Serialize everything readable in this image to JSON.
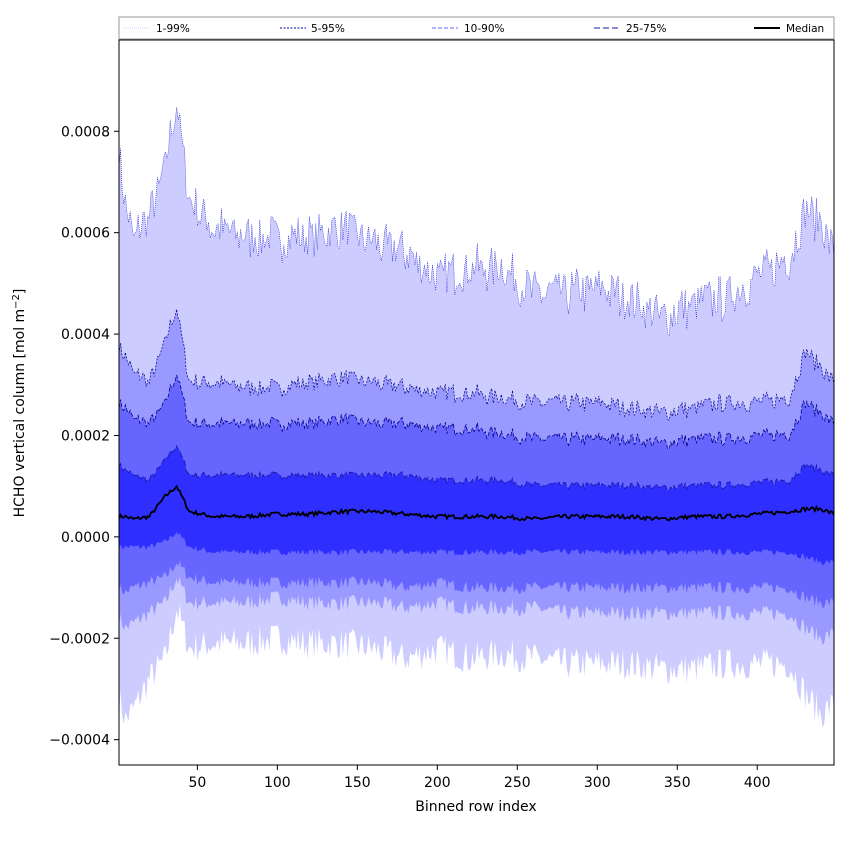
{
  "chart_data": {
    "type": "area",
    "title": "",
    "xlabel": "Binned row index",
    "ylabel_main": "HCHO vertical column [mol m",
    "ylabel_sup": "−2",
    "ylabel_close": "]",
    "xlim": [
      1,
      448
    ],
    "ylim": [
      -0.00045,
      0.00098
    ],
    "xticks": [
      50,
      100,
      150,
      200,
      250,
      300,
      350,
      400
    ],
    "xtick_labels": [
      "50",
      "100",
      "150",
      "200",
      "250",
      "300",
      "350",
      "400"
    ],
    "yticks": [
      -0.0004,
      -0.0002,
      0.0,
      0.0002,
      0.0004,
      0.0006,
      0.0008
    ],
    "ytick_labels": [
      "−0.0004",
      "−0.0002",
      "0.0000",
      "0.0002",
      "0.0004",
      "0.0006",
      "0.0008"
    ],
    "grid": false,
    "legend_position": "top, above plot",
    "legend": [
      {
        "label": "1-99%",
        "color": "#ccccff",
        "dash": "1,1"
      },
      {
        "label": "5-95%",
        "color": "#0000aa",
        "dash": "2,1.5"
      },
      {
        "label": "10-90%",
        "color": "#6666ff",
        "dash": "4,2"
      },
      {
        "label": "25-75%",
        "color": "#1a1aaa",
        "dash": "6,3"
      },
      {
        "label": "Median",
        "color": "#000000",
        "dash": ""
      }
    ],
    "band_colors": [
      "#ccccff",
      "#9999ff",
      "#6666ff",
      "#2e2eff"
    ],
    "x_anchors": [
      1,
      5,
      10,
      20,
      30,
      37,
      45,
      60,
      80,
      100,
      120,
      140,
      160,
      180,
      200,
      220,
      240,
      260,
      280,
      300,
      320,
      340,
      360,
      380,
      400,
      420,
      430,
      440,
      448
    ],
    "series": [
      {
        "name": "1-99%",
        "lower": true,
        "values": [
          -0.00032,
          -0.00036,
          -0.00034,
          -0.00028,
          -0.00024,
          -0.00014,
          -0.00022,
          -0.00021,
          -0.00021,
          -0.0002,
          -0.00021,
          -0.00021,
          -0.00022,
          -0.00024,
          -0.00022,
          -0.00024,
          -0.00023,
          -0.00024,
          -0.00025,
          -0.00025,
          -0.00025,
          -0.00026,
          -0.00026,
          -0.00025,
          -0.00025,
          -0.00025,
          -0.00031,
          -0.00035,
          -0.00033
        ]
      },
      {
        "name": "5-95%",
        "lower": true,
        "values": [
          -0.00016,
          -0.00018,
          -0.00017,
          -0.00015,
          -0.00013,
          -8e-05,
          -0.00013,
          -0.00013,
          -0.00013,
          -0.00012,
          -0.00013,
          -0.00013,
          -0.00013,
          -0.00014,
          -0.00013,
          -0.00014,
          -0.00014,
          -0.00014,
          -0.00015,
          -0.00015,
          -0.00015,
          -0.00015,
          -0.00015,
          -0.00015,
          -0.00015,
          -0.00015,
          -0.00018,
          -0.0002,
          -0.00019
        ]
      },
      {
        "name": "10-90%",
        "lower": true,
        "values": [
          -0.0001,
          -0.00011,
          -0.0001,
          -9e-05,
          -8e-05,
          -5e-05,
          -8e-05,
          -9e-05,
          -9e-05,
          -9e-05,
          -9e-05,
          -9e-05,
          -9e-05,
          -0.0001,
          -9e-05,
          -0.0001,
          -0.0001,
          -0.0001,
          -0.0001,
          -0.0001,
          -0.0001,
          -0.0001,
          -0.0001,
          -0.0001,
          -0.0001,
          -0.0001,
          -0.00012,
          -0.00013,
          -0.00013
        ]
      },
      {
        "name": "25-75%",
        "lower": true,
        "values": [
          -2e-05,
          -2e-05,
          -2e-05,
          -2e-05,
          -1e-05,
          1e-05,
          -2e-05,
          -3e-05,
          -3e-05,
          -3e-05,
          -3e-05,
          -3e-05,
          -3e-05,
          -3e-05,
          -3e-05,
          -3e-05,
          -3e-05,
          -3e-05,
          -3e-05,
          -3e-05,
          -3e-05,
          -3e-05,
          -3e-05,
          -3e-05,
          -3e-05,
          -3e-05,
          -4e-05,
          -5e-05,
          -5e-05
        ]
      },
      {
        "name": "Median",
        "values": [
          4e-05,
          4e-05,
          3.5e-05,
          4e-05,
          8e-05,
          0.0001,
          5e-05,
          4e-05,
          4e-05,
          4.5e-05,
          4.5e-05,
          5e-05,
          5e-05,
          4.5e-05,
          4e-05,
          4e-05,
          4e-05,
          3.5e-05,
          4e-05,
          4e-05,
          4e-05,
          3.5e-05,
          4e-05,
          4e-05,
          4.5e-05,
          5e-05,
          5.5e-05,
          5.5e-05,
          4.5e-05
        ]
      },
      {
        "name": "25-75%",
        "upper": true,
        "values": [
          0.00014,
          0.00013,
          0.00012,
          0.00011,
          0.00015,
          0.00018,
          0.00012,
          0.00012,
          0.00012,
          0.00012,
          0.00012,
          0.00012,
          0.00012,
          0.00012,
          0.00011,
          0.00011,
          0.00011,
          0.0001,
          0.0001,
          0.0001,
          0.0001,
          9.5e-05,
          0.0001,
          0.0001,
          0.000105,
          0.00011,
          0.00014,
          0.00013,
          0.00012
        ]
      },
      {
        "name": "10-90%",
        "upper": true,
        "values": [
          0.00026,
          0.00025,
          0.00023,
          0.00022,
          0.00026,
          0.00032,
          0.00022,
          0.00022,
          0.00022,
          0.00022,
          0.00022,
          0.00023,
          0.00022,
          0.00022,
          0.00021,
          0.00021,
          0.0002,
          0.00019,
          0.00019,
          0.00019,
          0.00019,
          0.00018,
          0.00019,
          0.00019,
          0.000195,
          0.0002,
          0.00026,
          0.00024,
          0.00022
        ]
      },
      {
        "name": "5-95%",
        "upper": true,
        "values": [
          0.00037,
          0.00035,
          0.00032,
          0.0003,
          0.00038,
          0.00045,
          0.0003,
          0.0003,
          0.00029,
          0.00029,
          0.0003,
          0.00031,
          0.0003,
          0.00029,
          0.00028,
          0.00028,
          0.00027,
          0.00026,
          0.00026,
          0.00026,
          0.00025,
          0.00024,
          0.00025,
          0.00026,
          0.00026,
          0.00027,
          0.00036,
          0.00033,
          0.0003
        ]
      },
      {
        "name": "1-99%",
        "upper": true,
        "values": [
          0.00075,
          0.00064,
          0.00058,
          0.00062,
          0.00072,
          0.00085,
          0.00065,
          0.0006,
          0.00058,
          0.00058,
          0.00058,
          0.0006,
          0.00057,
          0.00055,
          0.0005,
          0.00052,
          0.00052,
          0.00047,
          0.00047,
          0.00048,
          0.00046,
          0.00042,
          0.00045,
          0.00046,
          0.0005,
          0.00054,
          0.00063,
          0.00061,
          0.00055
        ]
      }
    ]
  }
}
